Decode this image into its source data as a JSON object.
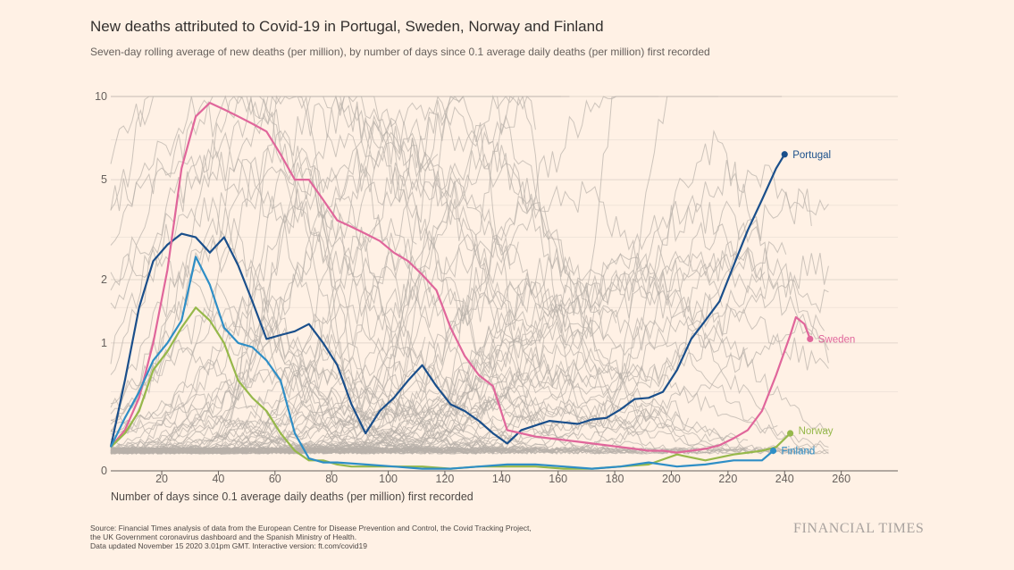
{
  "chart_data": {
    "type": "line",
    "title": "New deaths attributed to Covid-19 in Portugal, Sweden, Norway and Finland",
    "subtitle": "Seven-day rolling average of new deaths (per million), by number of days since 0.1 average daily deaths (per million) first recorded",
    "xlabel": "Number of days since 0.1 average daily deaths (per million) first recorded",
    "ylabel": "",
    "xlim": [
      0,
      280
    ],
    "ylim": [
      0,
      10
    ],
    "y_scale": "log",
    "x_ticks": [
      20,
      40,
      60,
      80,
      100,
      120,
      140,
      160,
      180,
      200,
      220,
      240,
      260
    ],
    "y_ticks": [
      0,
      1,
      2,
      5,
      10
    ],
    "grid": true,
    "series": [
      {
        "name": "Portugal",
        "color": "#1a4f8b",
        "x": [
          0,
          5,
          10,
          15,
          20,
          25,
          30,
          35,
          40,
          45,
          50,
          55,
          60,
          65,
          70,
          75,
          80,
          85,
          90,
          95,
          100,
          105,
          110,
          115,
          120,
          125,
          130,
          135,
          140,
          145,
          150,
          155,
          160,
          165,
          170,
          175,
          180,
          185,
          190,
          195,
          200,
          205,
          210,
          215,
          220,
          225,
          230,
          235,
          238
        ],
        "y": [
          0.12,
          0.6,
          1.5,
          2.4,
          2.8,
          3.1,
          3.0,
          2.6,
          3.0,
          2.3,
          1.6,
          1.05,
          1.1,
          1.15,
          1.25,
          1.0,
          0.75,
          0.4,
          0.2,
          0.35,
          0.45,
          0.6,
          0.75,
          0.55,
          0.4,
          0.35,
          0.28,
          0.2,
          0.14,
          0.22,
          0.25,
          0.28,
          0.27,
          0.26,
          0.29,
          0.3,
          0.36,
          0.44,
          0.45,
          0.5,
          0.7,
          1.05,
          1.3,
          1.6,
          2.3,
          3.2,
          4.2,
          5.5,
          6.2
        ]
      },
      {
        "name": "Sweden",
        "color": "#e0669b",
        "x": [
          0,
          5,
          10,
          15,
          20,
          25,
          30,
          35,
          40,
          45,
          50,
          55,
          60,
          65,
          70,
          75,
          80,
          85,
          90,
          95,
          100,
          105,
          110,
          115,
          120,
          125,
          130,
          135,
          140,
          145,
          150,
          155,
          160,
          165,
          170,
          175,
          180,
          185,
          190,
          195,
          200,
          205,
          210,
          215,
          220,
          225,
          230,
          235,
          240,
          242,
          245,
          247
        ],
        "y": [
          0.12,
          0.22,
          0.45,
          1.0,
          2.2,
          5.5,
          8.5,
          9.5,
          9.0,
          8.5,
          8.0,
          7.5,
          6.2,
          5.0,
          5.0,
          4.2,
          3.5,
          3.3,
          3.1,
          2.9,
          2.6,
          2.4,
          2.1,
          1.8,
          1.2,
          0.85,
          0.65,
          0.55,
          0.22,
          0.2,
          0.18,
          0.17,
          0.16,
          0.15,
          0.14,
          0.13,
          0.12,
          0.11,
          0.1,
          0.1,
          0.09,
          0.1,
          0.11,
          0.13,
          0.17,
          0.22,
          0.35,
          0.65,
          1.1,
          1.35,
          1.25,
          1.05
        ]
      },
      {
        "name": "Norway",
        "color": "#96b84a",
        "x": [
          0,
          5,
          10,
          15,
          20,
          25,
          30,
          35,
          40,
          45,
          50,
          55,
          60,
          65,
          70,
          75,
          80,
          85,
          90,
          95,
          100,
          110,
          120,
          130,
          140,
          150,
          160,
          170,
          180,
          190,
          200,
          210,
          220,
          230,
          235,
          240
        ],
        "y": [
          0.12,
          0.2,
          0.35,
          0.7,
          0.9,
          1.2,
          1.5,
          1.3,
          1.0,
          0.6,
          0.45,
          0.35,
          0.2,
          0.1,
          0.05,
          0.05,
          0.03,
          0.02,
          0.02,
          0.02,
          0.02,
          0.02,
          0.01,
          0.02,
          0.02,
          0.02,
          0.01,
          0.01,
          0.02,
          0.03,
          0.08,
          0.05,
          0.08,
          0.1,
          0.12,
          0.2
        ]
      },
      {
        "name": "Finland",
        "color": "#2e8ec6",
        "x": [
          0,
          5,
          10,
          15,
          20,
          25,
          30,
          35,
          40,
          45,
          50,
          55,
          60,
          65,
          70,
          75,
          80,
          90,
          100,
          110,
          120,
          130,
          140,
          150,
          160,
          170,
          180,
          190,
          200,
          210,
          220,
          230,
          234
        ],
        "y": [
          0.12,
          0.3,
          0.5,
          0.8,
          1.0,
          1.3,
          2.5,
          1.9,
          1.2,
          1.0,
          0.95,
          0.8,
          0.6,
          0.2,
          0.06,
          0.04,
          0.04,
          0.03,
          0.02,
          0.01,
          0.01,
          0.02,
          0.03,
          0.03,
          0.02,
          0.01,
          0.02,
          0.04,
          0.02,
          0.03,
          0.05,
          0.05,
          0.1
        ]
      }
    ],
    "highlight_order": [
      "Portugal",
      "Sweden",
      "Norway",
      "Finland"
    ]
  },
  "source": {
    "line1": "Source: Financial Times analysis of data from the European Centre for Disease Prevention and Control, the Covid Tracking Project,",
    "line2": "the UK Government coronavirus dashboard and the Spanish Ministry of Health.",
    "line3": "Data updated November 15 2020 3.01pm GMT. Interactive version: ft.com/covid19"
  },
  "brand": "FINANCIAL TIMES",
  "colors": {
    "background": "#fff1e5",
    "context_lines": "#b8b0aa",
    "grid": "#e8ddd4"
  }
}
